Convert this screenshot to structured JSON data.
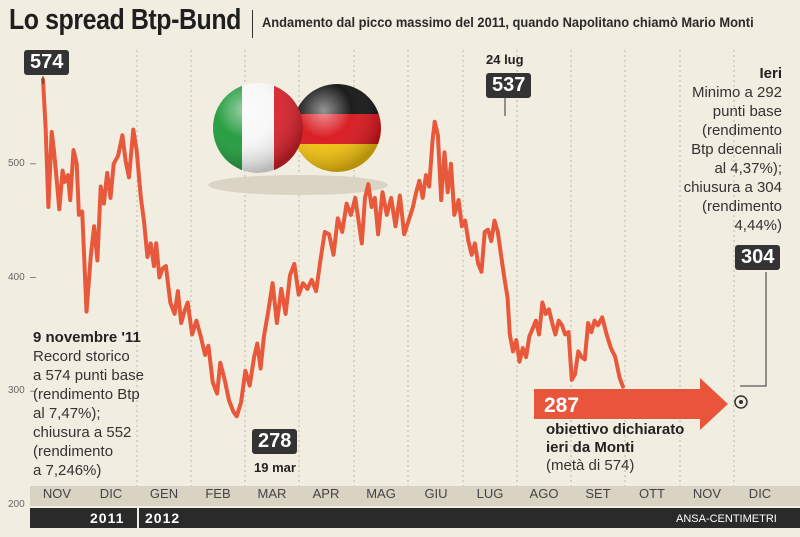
{
  "header": {
    "title": "Lo spread Btp-Bund",
    "subtitle": "Andamento dal picco massimo del 2011, quando Napolitano chiamò Mario Monti"
  },
  "colors": {
    "line": "#e8593c",
    "background": "#f1ede0",
    "dark": "#2a2a2a"
  },
  "chart_data": {
    "type": "line",
    "title": "Lo spread Btp-Bund",
    "ylim": [
      200,
      600
    ],
    "yticks": [
      200,
      300,
      400,
      500
    ],
    "categories": [
      "NOV",
      "DIC",
      "GEN",
      "FEB",
      "MAR",
      "APR",
      "MAG",
      "GIU",
      "LUG",
      "AGO",
      "SET",
      "OTT",
      "NOV",
      "DIC"
    ],
    "years": [
      "2011",
      "2012"
    ],
    "grid": "vertical dashed month separators",
    "series": [
      {
        "values": [
          [
            0.0,
            574
          ],
          [
            0.05,
            530
          ],
          [
            0.1,
            462
          ],
          [
            0.16,
            528
          ],
          [
            0.2,
            512
          ],
          [
            0.26,
            482
          ],
          [
            0.3,
            460
          ],
          [
            0.36,
            494
          ],
          [
            0.4,
            484
          ],
          [
            0.46,
            490
          ],
          [
            0.5,
            468
          ],
          [
            0.56,
            512
          ],
          [
            0.62,
            500
          ],
          [
            0.66,
            455
          ],
          [
            0.72,
            458
          ],
          [
            0.8,
            370
          ],
          [
            0.88,
            420
          ],
          [
            0.94,
            445
          ],
          [
            1.0,
            415
          ],
          [
            1.06,
            480
          ],
          [
            1.12,
            465
          ],
          [
            1.18,
            492
          ],
          [
            1.24,
            470
          ],
          [
            1.3,
            500
          ],
          [
            1.38,
            507
          ],
          [
            1.46,
            525
          ],
          [
            1.52,
            502
          ],
          [
            1.58,
            488
          ],
          [
            1.66,
            530
          ],
          [
            1.72,
            512
          ],
          [
            1.8,
            470
          ],
          [
            1.86,
            448
          ],
          [
            1.92,
            418
          ],
          [
            1.98,
            430
          ],
          [
            2.04,
            410
          ],
          [
            2.08,
            430
          ],
          [
            2.14,
            400
          ],
          [
            2.2,
            408
          ],
          [
            2.26,
            410
          ],
          [
            2.34,
            378
          ],
          [
            2.42,
            368
          ],
          [
            2.48,
            388
          ],
          [
            2.54,
            360
          ],
          [
            2.6,
            370
          ],
          [
            2.66,
            378
          ],
          [
            2.74,
            350
          ],
          [
            2.82,
            362
          ],
          [
            2.9,
            348
          ],
          [
            2.98,
            332
          ],
          [
            3.04,
            340
          ],
          [
            3.12,
            308
          ],
          [
            3.2,
            298
          ],
          [
            3.26,
            325
          ],
          [
            3.34,
            310
          ],
          [
            3.42,
            292
          ],
          [
            3.5,
            282
          ],
          [
            3.56,
            278
          ],
          [
            3.64,
            290
          ],
          [
            3.72,
            318
          ],
          [
            3.8,
            305
          ],
          [
            3.88,
            330
          ],
          [
            3.94,
            342
          ],
          [
            4.0,
            320
          ],
          [
            4.06,
            348
          ],
          [
            4.14,
            370
          ],
          [
            4.22,
            395
          ],
          [
            4.3,
            360
          ],
          [
            4.38,
            390
          ],
          [
            4.46,
            368
          ],
          [
            4.54,
            402
          ],
          [
            4.62,
            412
          ],
          [
            4.7,
            385
          ],
          [
            4.78,
            395
          ],
          [
            4.86,
            390
          ],
          [
            4.94,
            398
          ],
          [
            5.02,
            388
          ],
          [
            5.1,
            415
          ],
          [
            5.18,
            440
          ],
          [
            5.26,
            438
          ],
          [
            5.34,
            420
          ],
          [
            5.42,
            452
          ],
          [
            5.5,
            440
          ],
          [
            5.58,
            465
          ],
          [
            5.66,
            455
          ],
          [
            5.74,
            470
          ],
          [
            5.8,
            450
          ],
          [
            5.86,
            430
          ],
          [
            5.92,
            470
          ],
          [
            5.98,
            482
          ],
          [
            6.04,
            462
          ],
          [
            6.1,
            470
          ],
          [
            6.16,
            438
          ],
          [
            6.24,
            475
          ],
          [
            6.32,
            455
          ],
          [
            6.4,
            470
          ],
          [
            6.48,
            445
          ],
          [
            6.56,
            472
          ],
          [
            6.64,
            438
          ],
          [
            6.72,
            450
          ],
          [
            6.8,
            462
          ],
          [
            6.86,
            475
          ],
          [
            6.92,
            485
          ],
          [
            6.98,
            470
          ],
          [
            7.04,
            490
          ],
          [
            7.1,
            480
          ],
          [
            7.16,
            520
          ],
          [
            7.2,
            537
          ],
          [
            7.26,
            525
          ],
          [
            7.32,
            468
          ],
          [
            7.38,
            510
          ],
          [
            7.44,
            475
          ],
          [
            7.5,
            500
          ],
          [
            7.56,
            455
          ],
          [
            7.64,
            468
          ],
          [
            7.7,
            445
          ],
          [
            7.76,
            450
          ],
          [
            7.82,
            432
          ],
          [
            7.88,
            420
          ],
          [
            7.94,
            430
          ],
          [
            8.0,
            412
          ],
          [
            8.06,
            405
          ],
          [
            8.12,
            440
          ],
          [
            8.18,
            442
          ],
          [
            8.24,
            432
          ],
          [
            8.3,
            450
          ],
          [
            8.36,
            440
          ],
          [
            8.42,
            420
          ],
          [
            8.48,
            400
          ],
          [
            8.54,
            382
          ],
          [
            8.58,
            350
          ],
          [
            8.64,
            335
          ],
          [
            8.7,
            345
          ],
          [
            8.76,
            326
          ],
          [
            8.82,
            338
          ],
          [
            8.88,
            330
          ],
          [
            8.94,
            348
          ],
          [
            9.0,
            355
          ],
          [
            9.06,
            362
          ],
          [
            9.12,
            350
          ],
          [
            9.18,
            378
          ],
          [
            9.24,
            368
          ],
          [
            9.3,
            372
          ],
          [
            9.36,
            360
          ],
          [
            9.42,
            350
          ],
          [
            9.48,
            362
          ],
          [
            9.54,
            358
          ],
          [
            9.6,
            350
          ],
          [
            9.66,
            352
          ],
          [
            9.72,
            310
          ],
          [
            9.78,
            315
          ],
          [
            9.84,
            335
          ],
          [
            9.9,
            330
          ],
          [
            9.96,
            328
          ],
          [
            10.02,
            360
          ],
          [
            10.08,
            352
          ],
          [
            10.14,
            362
          ],
          [
            10.2,
            358
          ],
          [
            10.28,
            365
          ],
          [
            10.36,
            350
          ],
          [
            10.44,
            338
          ],
          [
            10.52,
            330
          ],
          [
            10.6,
            312
          ],
          [
            10.66,
            304
          ]
        ]
      }
    ],
    "annotations": {
      "peak": {
        "value": "574",
        "date_label": "",
        "note_title": "9 novembre '11",
        "note_lines": [
          "Record storico",
          "a 574 punti base",
          "(rendimento Btp",
          "al 7,47%);",
          "chiusura a 552",
          "(rendimento",
          "a 7,246%)"
        ]
      },
      "low": {
        "value": "278",
        "date_label": "19 mar"
      },
      "july": {
        "value": "537",
        "date_label": "24 lug"
      },
      "current": {
        "value": "304",
        "note_title": "Ieri",
        "note_lines": [
          "Minimo a 292",
          "punti base",
          "(rendimento",
          "Btp decennali",
          "al 4,37%);",
          "chiusura a 304",
          "(rendimento",
          "4,44%)"
        ]
      },
      "target": {
        "value": "287",
        "note_title_lines": [
          "obiettivo dichiarato",
          "ieri da Monti"
        ],
        "note_sub": "(metà di 574)"
      }
    }
  },
  "footer": {
    "year_2011": "2011",
    "year_2012": "2012",
    "credit": "ANSA-CENTIMETRI"
  }
}
